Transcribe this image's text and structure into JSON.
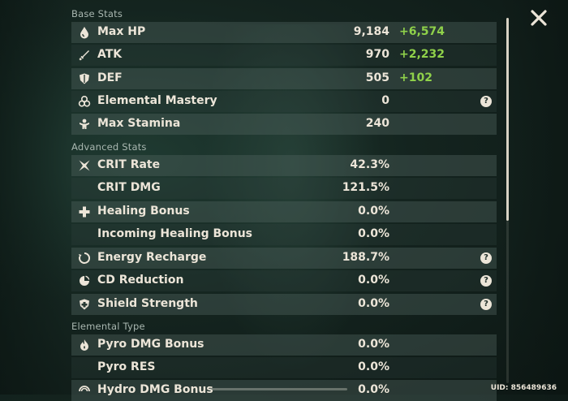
{
  "sections": {
    "base": "Base Stats",
    "advanced": "Advanced Stats",
    "elemental": "Elemental Type"
  },
  "base_stats": [
    {
      "label": "Max HP",
      "value": "9,184",
      "bonus": "+6,574",
      "icon": "hp-drop-icon"
    },
    {
      "label": "ATK",
      "value": "970",
      "bonus": "+2,232",
      "icon": "sword-icon"
    },
    {
      "label": "DEF",
      "value": "505",
      "bonus": "+102",
      "icon": "shield-icon"
    },
    {
      "label": "Elemental Mastery",
      "value": "0",
      "help": "?",
      "icon": "mastery-icon"
    },
    {
      "label": "Max Stamina",
      "value": "240",
      "icon": "stamina-icon"
    }
  ],
  "advanced_stats": [
    {
      "label": "CRIT Rate",
      "value": "42.3%",
      "icon": "crit-icon"
    },
    {
      "label": "CRIT DMG",
      "value": "121.5%"
    },
    {
      "label": "Healing Bonus",
      "value": "0.0%",
      "icon": "plus-cross-icon"
    },
    {
      "label": "Incoming Healing Bonus",
      "value": "0.0%"
    },
    {
      "label": "Energy Recharge",
      "value": "188.7%",
      "help": "?",
      "icon": "energy-icon"
    },
    {
      "label": "CD Reduction",
      "value": "0.0%",
      "help": "?",
      "icon": "cooldown-icon"
    },
    {
      "label": "Shield Strength",
      "value": "0.0%",
      "help": "?",
      "icon": "shield-strength-icon"
    }
  ],
  "elemental_stats": [
    {
      "label": "Pyro DMG Bonus",
      "value": "0.0%",
      "icon": "pyro-icon"
    },
    {
      "label": "Pyro RES",
      "value": "0.0%"
    },
    {
      "label": "Hydro DMG Bonus",
      "value": "0.0%",
      "icon": "hydro-icon"
    }
  ],
  "uid": "UID: 856489636",
  "colors": {
    "bonus": "#8fd14a",
    "text": "#ece5d8"
  }
}
